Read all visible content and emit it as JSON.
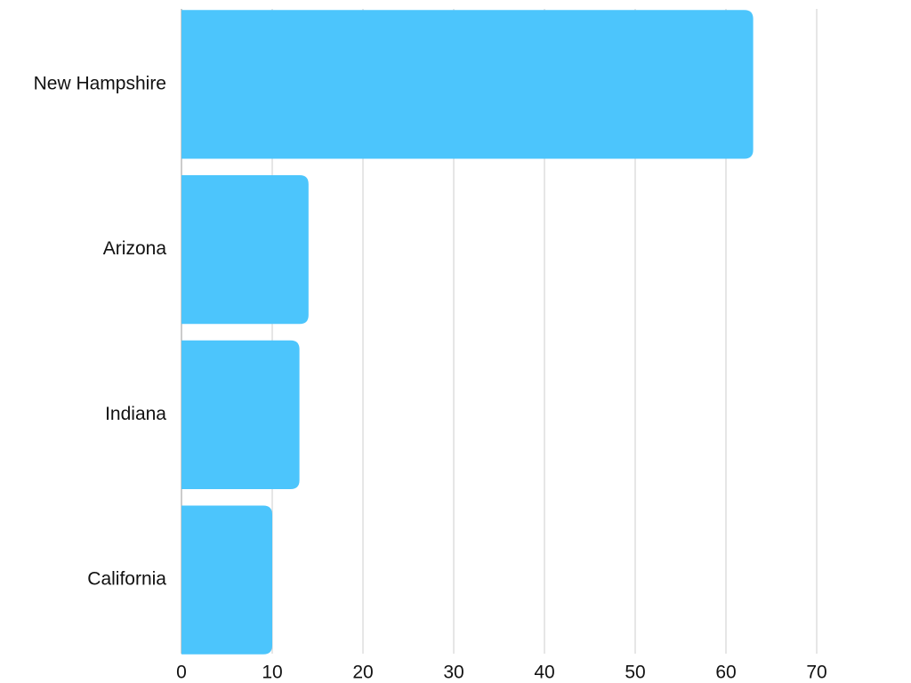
{
  "chart_data": {
    "type": "bar",
    "categories": [
      "New Hampshire",
      "Arizona",
      "Indiana",
      "California"
    ],
    "values": [
      63,
      14,
      13,
      10
    ],
    "color": "#4cc5fc",
    "xlim": [
      0,
      70
    ],
    "xticks": [
      0,
      10,
      20,
      30,
      40,
      50,
      60,
      70
    ],
    "grid": true
  }
}
